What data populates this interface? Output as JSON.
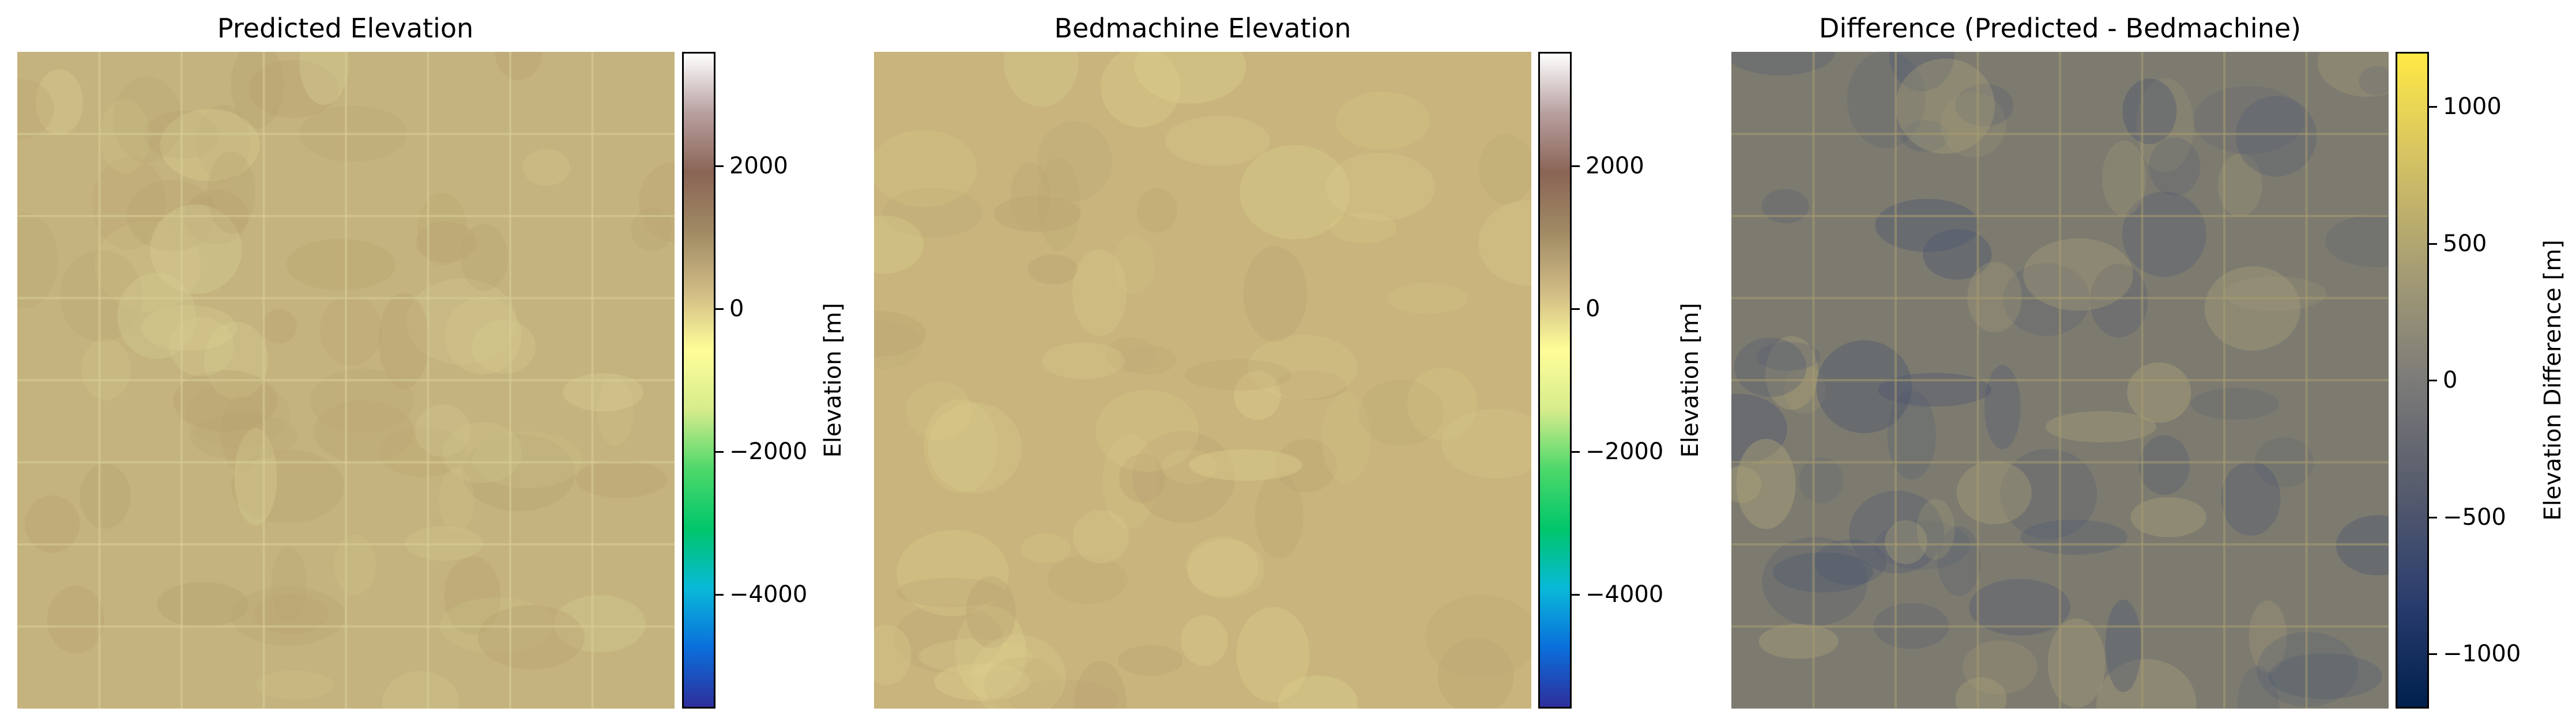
{
  "chart_data": [
    {
      "type": "heatmap",
      "title": "Predicted Elevation",
      "colorbar": {
        "label": "Elevation [m]",
        "range": [
          -5600,
          3600
        ],
        "ticks": [
          2000,
          0,
          -2000,
          -4000
        ],
        "tick_labels": [
          "2000",
          "0",
          "−2000",
          "−4000"
        ],
        "colormap": "terrain",
        "stops": [
          "#2e2f9c",
          "#0a6fdc",
          "#09b9d8",
          "#00c66a",
          "#4dd86a",
          "#d6ec8c",
          "#fffd99",
          "#cfba84",
          "#a08a64",
          "#8a6456",
          "#b8a0a0",
          "#ffffff"
        ]
      },
      "image": {
        "base_color": "#c4b37e",
        "grid_cells": 8,
        "description_level": "near 0 m, tiled patches"
      }
    },
    {
      "type": "heatmap",
      "title": "Bedmachine Elevation",
      "colorbar": {
        "label": "Elevation [m]",
        "range": [
          -5600,
          3600
        ],
        "ticks": [
          2000,
          0,
          -2000,
          -4000
        ],
        "tick_labels": [
          "2000",
          "0",
          "−2000",
          "−4000"
        ],
        "colormap": "terrain",
        "stops": [
          "#2e2f9c",
          "#0a6fdc",
          "#09b9d8",
          "#00c66a",
          "#4dd86a",
          "#d6ec8c",
          "#fffd99",
          "#cfba84",
          "#a08a64",
          "#8a6456",
          "#b8a0a0",
          "#ffffff"
        ]
      },
      "image": {
        "base_color": "#c8b47c",
        "grid_cells": 0
      }
    },
    {
      "type": "heatmap",
      "title": "Difference (Predicted - Bedmachine)",
      "colorbar": {
        "label": "Elevation Difference [m]",
        "range": [
          -1200,
          1200
        ],
        "ticks": [
          1000,
          500,
          0,
          -500,
          -1000
        ],
        "tick_labels": [
          "1000",
          "500",
          "0",
          "−500",
          "−1000"
        ],
        "colormap": "cividis",
        "stops": [
          "#00204d",
          "#2c3e6e",
          "#575c6d",
          "#7c7b78",
          "#a59c74",
          "#d3c164",
          "#ffe945"
        ]
      },
      "image": {
        "base_color": "#7d7b70",
        "grid_cells": 8
      }
    }
  ]
}
